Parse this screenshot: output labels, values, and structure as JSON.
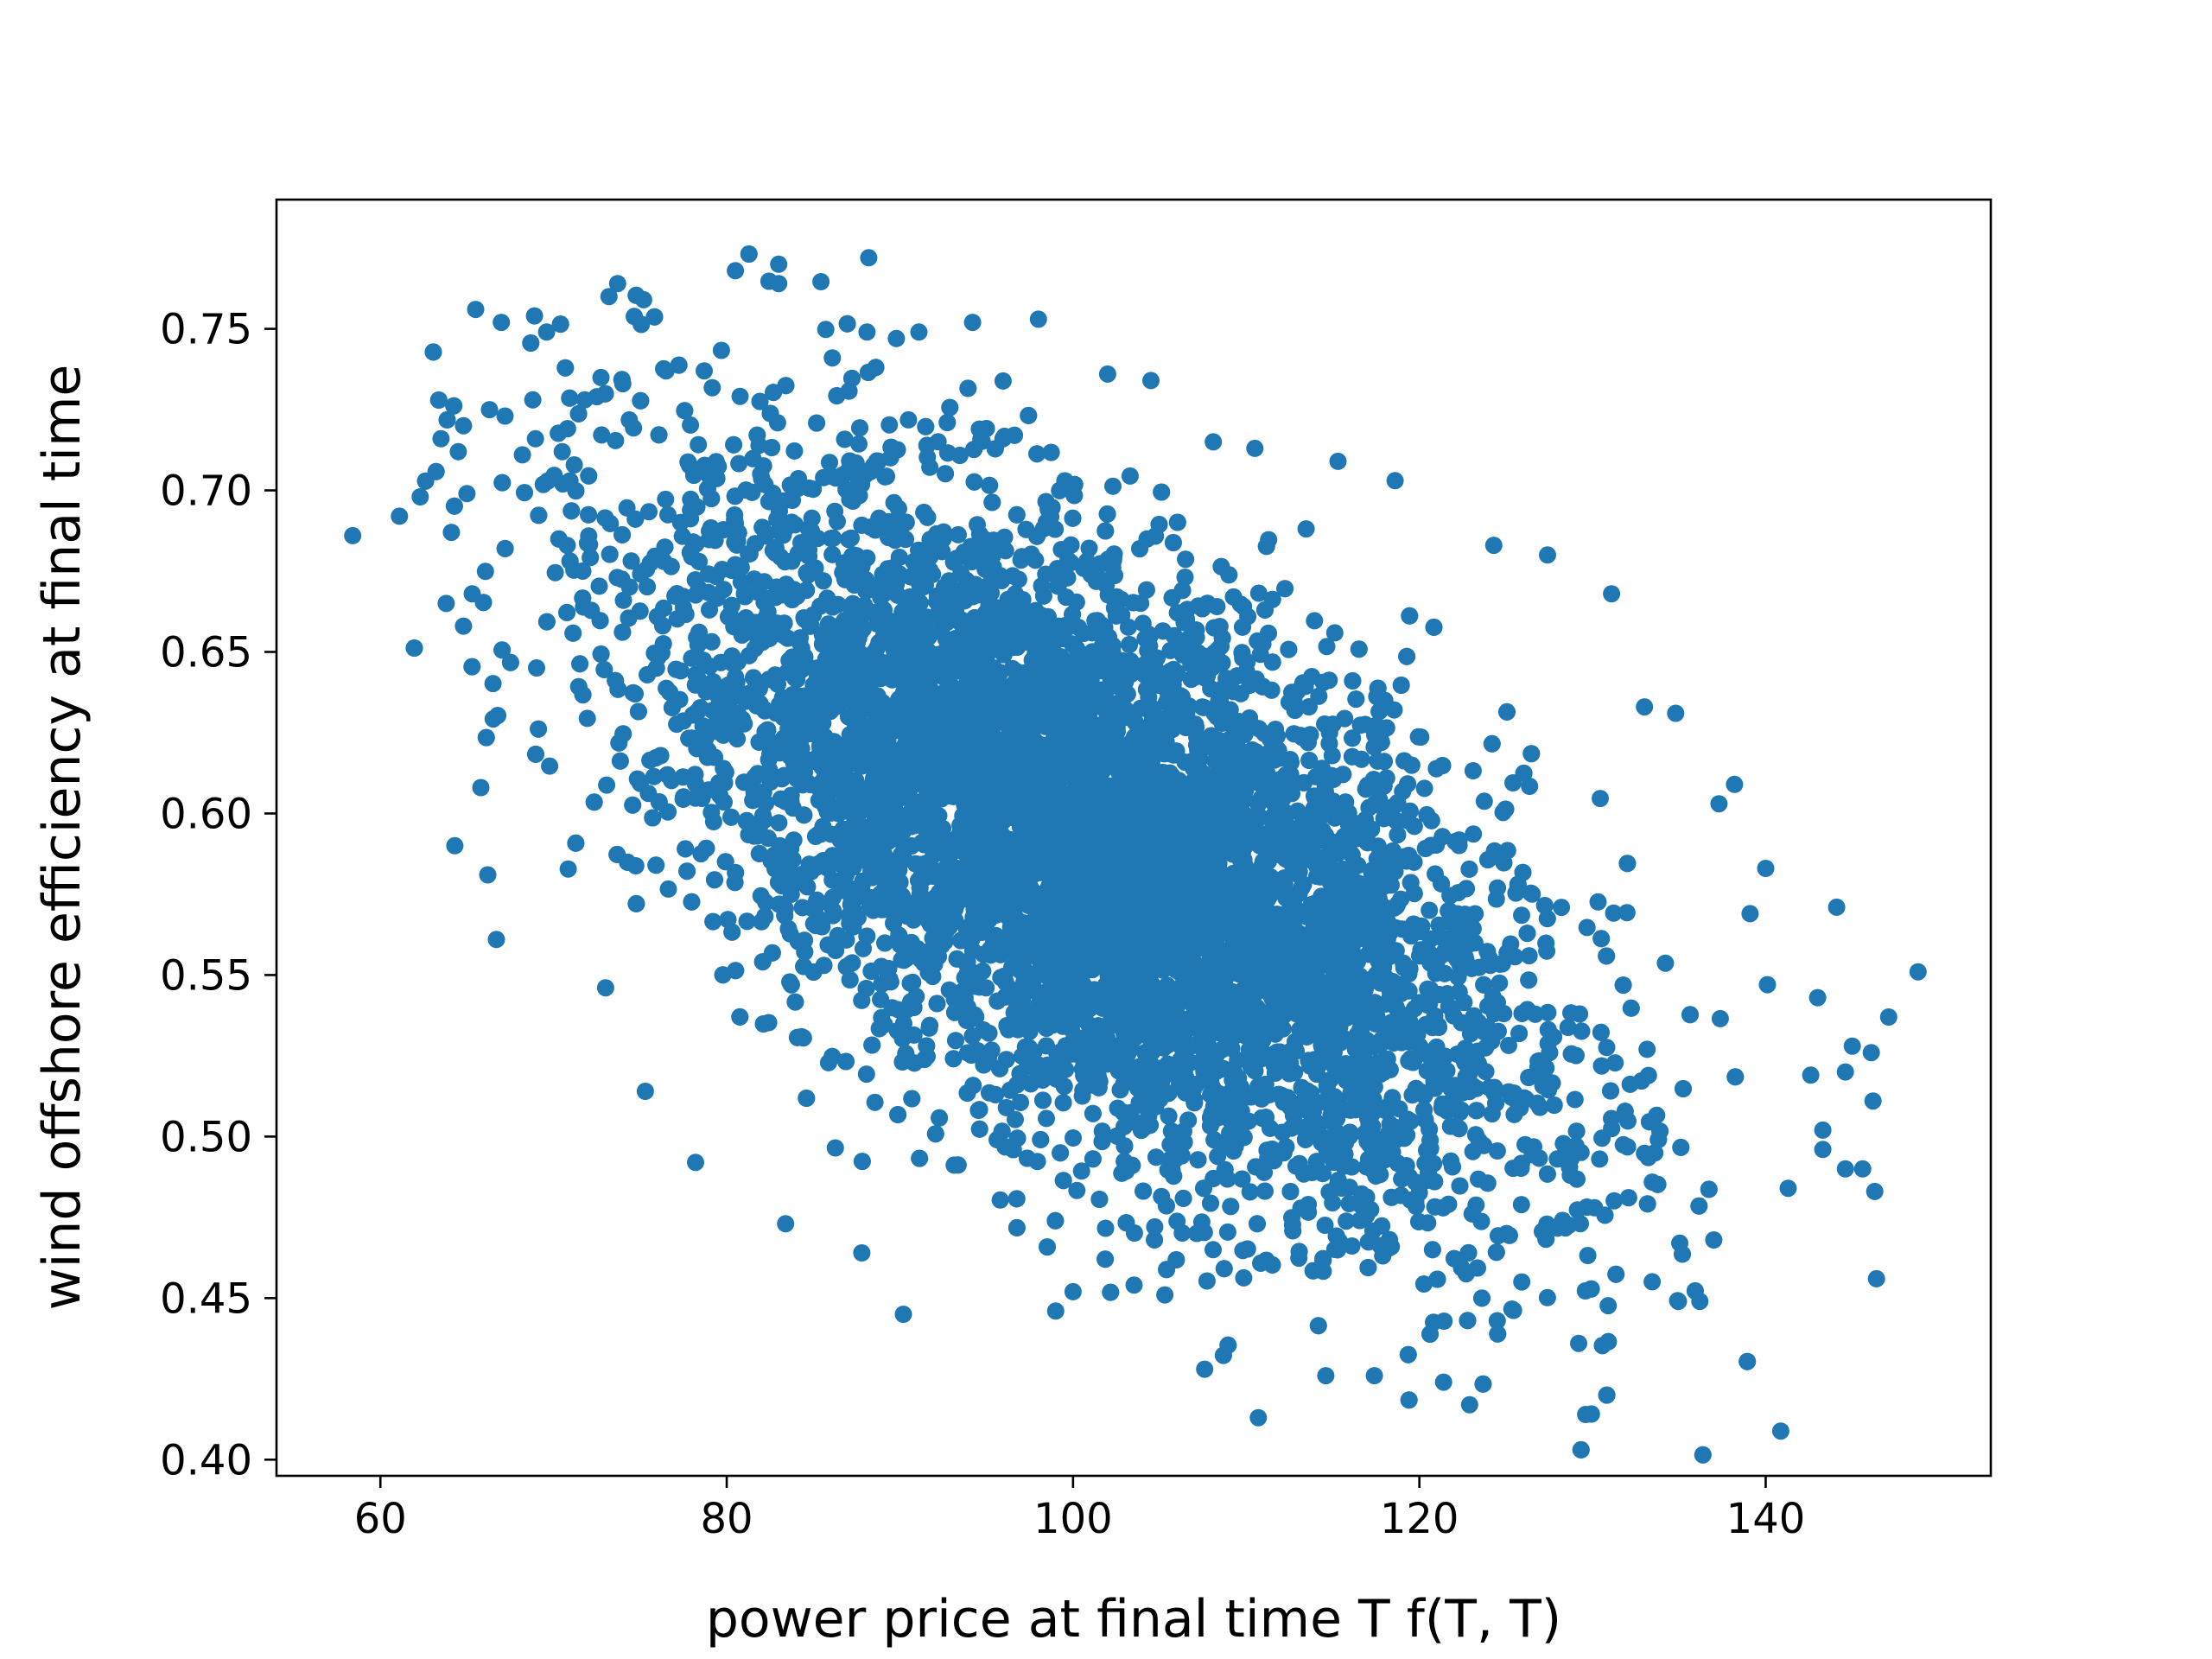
{
  "chart_data": {
    "type": "scatter",
    "title": "",
    "xlabel": "power price at final time T f(T, T)",
    "ylabel": "wind offshore efficiency at final time",
    "xlim": [
      54,
      153
    ],
    "ylim": [
      0.395,
      0.79
    ],
    "xticks": [
      60,
      80,
      100,
      120,
      140
    ],
    "xtick_labels": [
      "60",
      "80",
      "100",
      "120",
      "140"
    ],
    "yticks": [
      0.4,
      0.45,
      0.5,
      0.55,
      0.6,
      0.65,
      0.7,
      0.75
    ],
    "ytick_labels": [
      "0.40",
      "0.45",
      "0.50",
      "0.55",
      "0.60",
      "0.65",
      "0.70",
      "0.75"
    ],
    "grid": false,
    "legend": false,
    "marker_color": "#1f77b4",
    "series": [
      {
        "distribution": {
          "x_mean": 101,
          "x_std": 12.5,
          "y_mean": 0.59,
          "y_std": 0.055,
          "correlation": -0.6,
          "approx_count": 10000
        },
        "points": [
          [
            58.4,
            0.686
          ],
          [
            61.1,
            0.692
          ],
          [
            62.3,
            0.698
          ],
          [
            63.5,
            0.716
          ],
          [
            65.5,
            0.756
          ],
          [
            68.9,
            0.754
          ],
          [
            69.6,
            0.749
          ],
          [
            73.7,
            0.764
          ],
          [
            73.2,
            0.76
          ],
          [
            75.2,
            0.759
          ],
          [
            80.5,
            0.768
          ],
          [
            83.0,
            0.77
          ],
          [
            83.0,
            0.764
          ],
          [
            88.2,
            0.772
          ],
          [
            86.1,
            0.741
          ],
          [
            88.1,
            0.749
          ],
          [
            89.8,
            0.747
          ],
          [
            91.1,
            0.749
          ],
          [
            94.2,
            0.752
          ],
          [
            98.0,
            0.753
          ],
          [
            102.0,
            0.736
          ],
          [
            104.5,
            0.734
          ],
          [
            108.1,
            0.715
          ],
          [
            110.5,
            0.713
          ],
          [
            115.3,
            0.709
          ],
          [
            118.6,
            0.703
          ],
          [
            124.3,
            0.683
          ],
          [
            127.4,
            0.68
          ],
          [
            131.1,
            0.668
          ],
          [
            133.0,
            0.633
          ],
          [
            134.8,
            0.631
          ],
          [
            137.3,
            0.603
          ],
          [
            138.2,
            0.609
          ],
          [
            139.1,
            0.569
          ],
          [
            140.0,
            0.583
          ],
          [
            140.1,
            0.547
          ],
          [
            143.0,
            0.543
          ],
          [
            144.1,
            0.571
          ],
          [
            145.0,
            0.528
          ],
          [
            146.1,
            0.526
          ],
          [
            147.1,
            0.537
          ],
          [
            148.8,
            0.551
          ],
          [
            146.2,
            0.511
          ],
          [
            144.6,
            0.52
          ],
          [
            142.6,
            0.519
          ],
          [
            143.3,
            0.502
          ],
          [
            143.3,
            0.496
          ],
          [
            144.6,
            0.49
          ],
          [
            145.6,
            0.49
          ],
          [
            146.3,
            0.483
          ],
          [
            146.4,
            0.456
          ],
          [
            141.3,
            0.484
          ],
          [
            137.0,
            0.468
          ],
          [
            136.2,
            0.449
          ],
          [
            129.6,
            0.414
          ],
          [
            129.2,
            0.436
          ],
          [
            124.5,
            0.443
          ],
          [
            122.9,
            0.417
          ],
          [
            121.4,
            0.424
          ],
          [
            117.4,
            0.426
          ],
          [
            114.6,
            0.426
          ],
          [
            110.7,
            0.413
          ],
          [
            107.6,
            0.428
          ],
          [
            105.3,
            0.451
          ],
          [
            100.0,
            0.452
          ],
          [
            99.0,
            0.446
          ],
          [
            90.2,
            0.445
          ],
          [
            87.8,
            0.464
          ],
          [
            83.4,
            0.473
          ],
          [
            78.2,
            0.492
          ],
          [
            75.3,
            0.514
          ],
          [
            66.7,
            0.561
          ],
          [
            66.2,
            0.581
          ],
          [
            64.3,
            0.59
          ],
          [
            65.8,
            0.608
          ],
          [
            64.8,
            0.658
          ],
          [
            63.8,
            0.665
          ],
          [
            65.3,
            0.668
          ],
          [
            64.1,
            0.687
          ],
          [
            65.0,
            0.699
          ],
          [
            64.5,
            0.712
          ],
          [
            64.8,
            0.72
          ],
          [
            66.3,
            0.725
          ],
          [
            67.2,
            0.723
          ],
          [
            68.2,
            0.711
          ],
          [
            68.8,
            0.728
          ],
          [
            70.5,
            0.712
          ],
          [
            71.8,
            0.728
          ],
          [
            72.5,
            0.729
          ],
          [
            74.0,
            0.733
          ],
          [
            76.5,
            0.737
          ],
          [
            78.7,
            0.737
          ]
        ]
      }
    ]
  }
}
